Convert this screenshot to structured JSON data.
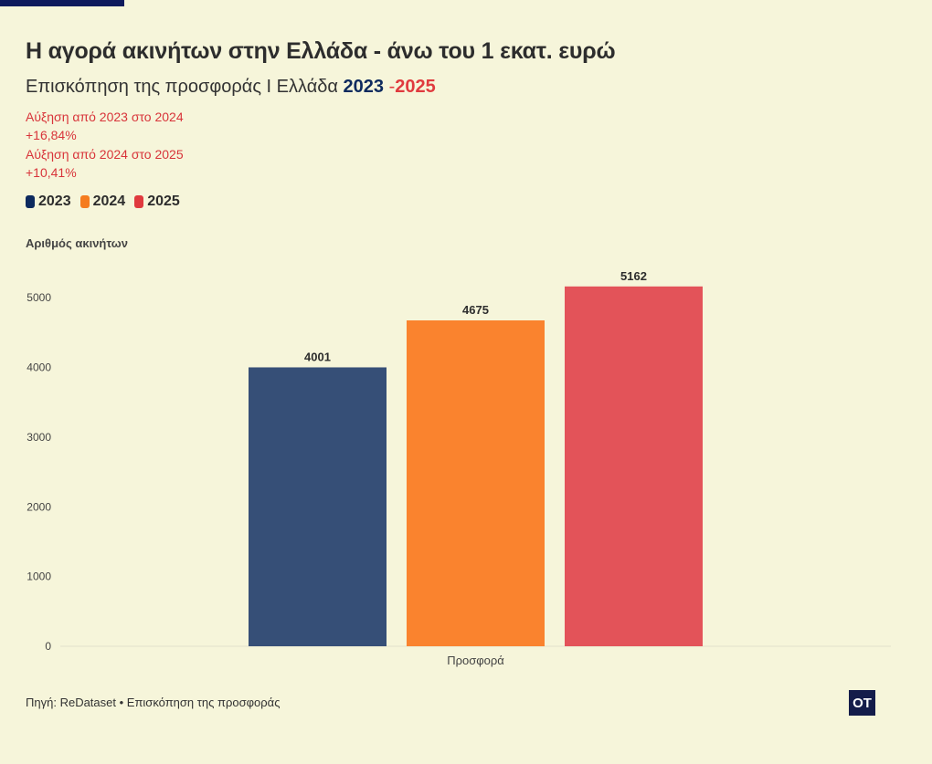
{
  "header": {
    "title": "Η αγορά ακινήτων στην Ελλάδα - άνω του 1 εκατ. ευρώ",
    "subtitle_prefix": "Επισκόπηση της προσφοράς Ι Ελλάδα ",
    "subtitle_year1": "2023",
    "subtitle_dash": " -",
    "subtitle_year2": "2025"
  },
  "notes": [
    "Αύξηση από 2023 στο 2024",
    "+16,84%",
    "Αύξηση από 2024 στο 2025",
    "+10,41%"
  ],
  "legend": [
    {
      "label": "2023",
      "color": "#0d2a5e"
    },
    {
      "label": "2024",
      "color": "#f57c1f"
    },
    {
      "label": "2025",
      "color": "#e03a3e"
    }
  ],
  "footer": {
    "source": "Πηγή: ReDataset • Επισκόπηση της προσφοράς",
    "logo": "OT"
  },
  "chart_data": {
    "type": "bar",
    "categories": [
      "Προσφορά"
    ],
    "series": [
      {
        "name": "2023",
        "values": [
          4001
        ],
        "color": "#364f77"
      },
      {
        "name": "2024",
        "values": [
          4675
        ],
        "color": "#fa832e"
      },
      {
        "name": "2025",
        "values": [
          5162
        ],
        "color": "#e35359"
      }
    ],
    "title": "Η αγορά ακινήτων στην Ελλάδα - άνω του 1 εκατ. ευρώ",
    "xlabel": "",
    "ylabel": "Αριθμός ακινήτων",
    "ylim": [
      0,
      5500
    ],
    "yticks": [
      0,
      1000,
      2000,
      3000,
      4000,
      5000
    ],
    "grid": false,
    "legend_position": "top-left"
  }
}
